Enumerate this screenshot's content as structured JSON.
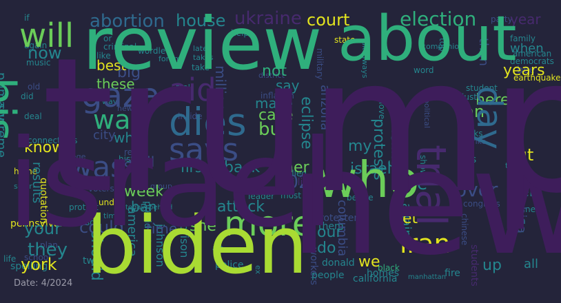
{
  "footer": {
    "date_label": "Date: 4/2024"
  },
  "palette": {
    "background": "#24243a",
    "purple_dark": "#3e1d5b",
    "purple": "#472a6e",
    "indigo": "#3b4d85",
    "blue": "#2f6a8e",
    "teal": "#24868e",
    "green": "#2faf7c",
    "green_light": "#6bcd59",
    "lime": "#a9db33",
    "yellow": "#e2e41f"
  },
  "words": [
    {
      "text": "trump",
      "color": "purple_dark"
    },
    {
      "text": "israel",
      "color": "purple_dark"
    },
    {
      "text": "new",
      "color": "purple_dark"
    },
    {
      "text": "biden",
      "color": "lime"
    },
    {
      "text": "review",
      "color": "green"
    },
    {
      "text": "about",
      "color": "green"
    },
    {
      "text": "who",
      "color": "green_light"
    },
    {
      "text": "will",
      "color": "green_light"
    },
    {
      "text": "his",
      "color": "green"
    },
    {
      "text": "more",
      "color": "green_light"
    },
    {
      "text": "gaza",
      "color": "indigo"
    },
    {
      "text": "dies",
      "color": "blue"
    },
    {
      "text": "says",
      "color": "indigo"
    },
    {
      "text": "war",
      "color": "green"
    },
    {
      "text": "aid",
      "color": "purple"
    },
    {
      "text": "was",
      "color": "indigo"
    },
    {
      "text": "trial",
      "color": "purple"
    },
    {
      "text": "day",
      "color": "blue"
    },
    {
      "text": "iran",
      "color": "yellow"
    },
    {
      "text": "abortion",
      "color": "blue"
    },
    {
      "text": "house",
      "color": "teal"
    },
    {
      "text": "ukraine",
      "color": "purple"
    },
    {
      "text": "court",
      "color": "yellow"
    },
    {
      "text": "election",
      "color": "green"
    },
    {
      "text": "year",
      "color": "purple"
    },
    {
      "text": "state",
      "color": "yellow"
    },
    {
      "text": "now",
      "color": "teal"
    },
    {
      "text": "best",
      "color": "yellow"
    },
    {
      "text": "big",
      "color": "indigo"
    },
    {
      "text": "these",
      "color": "green_light"
    },
    {
      "text": "not",
      "color": "green"
    },
    {
      "text": "say",
      "color": "teal"
    },
    {
      "text": "million",
      "color": "indigo"
    },
    {
      "text": "make",
      "color": "teal"
    },
    {
      "text": "case",
      "color": "green_light"
    },
    {
      "text": "but",
      "color": "green_light"
    },
    {
      "text": "can",
      "color": "green_light"
    },
    {
      "text": "here",
      "color": "green_light"
    },
    {
      "text": "when",
      "color": "teal"
    },
    {
      "text": "years",
      "color": "yellow"
    },
    {
      "text": "than",
      "color": "indigo"
    },
    {
      "text": "primary",
      "color": "teal"
    },
    {
      "text": "supreme",
      "color": "teal"
    },
    {
      "text": "know",
      "color": "yellow"
    },
    {
      "text": "why",
      "color": "teal"
    },
    {
      "text": "city",
      "color": "indigo"
    },
    {
      "text": "april",
      "color": "indigo"
    },
    {
      "text": "first",
      "color": "teal"
    },
    {
      "text": "back",
      "color": "teal"
    },
    {
      "text": "her",
      "color": "green_light"
    },
    {
      "text": "2024",
      "color": "indigo"
    },
    {
      "text": "he",
      "color": "teal"
    },
    {
      "text": "israeli",
      "color": "teal"
    },
    {
      "text": "protests",
      "color": "teal"
    },
    {
      "text": "eclipse",
      "color": "teal"
    },
    {
      "text": "arizona",
      "color": "indigo"
    },
    {
      "text": "one",
      "color": "teal"
    },
    {
      "text": "my",
      "color": "teal"
    },
    {
      "text": "briefing",
      "color": "teal"
    },
    {
      "text": "over",
      "color": "indigo"
    },
    {
      "text": "out",
      "color": "yellow"
    },
    {
      "text": "their",
      "color": "teal"
    },
    {
      "text": "results",
      "color": "teal"
    },
    {
      "text": "week",
      "color": "green_light"
    },
    {
      "text": "ban",
      "color": "teal"
    },
    {
      "text": "attack",
      "color": "teal"
    },
    {
      "text": "your",
      "color": "teal"
    },
    {
      "text": "could",
      "color": "indigo"
    },
    {
      "text": "time",
      "color": "indigo"
    },
    {
      "text": "she",
      "color": "green_light"
    },
    {
      "text": "they",
      "color": "teal"
    },
    {
      "text": "york",
      "color": "yellow"
    },
    {
      "text": "should",
      "color": "teal"
    },
    {
      "text": "america",
      "color": "teal"
    },
    {
      "text": "our",
      "color": "teal"
    },
    {
      "text": "do",
      "color": "teal"
    },
    {
      "text": "get",
      "color": "yellow"
    },
    {
      "text": "we",
      "color": "yellow"
    },
    {
      "text": "columbia",
      "color": "indigo"
    },
    {
      "text": "against",
      "color": "teal"
    },
    {
      "text": "up",
      "color": "teal"
    },
    {
      "text": "all",
      "color": "teal"
    },
    {
      "text": "china",
      "color": "indigo"
    },
    {
      "text": "prison",
      "color": "teal"
    },
    {
      "text": "police",
      "color": "teal"
    },
    {
      "text": "johnson",
      "color": "teal"
    },
    {
      "text": "president",
      "color": "teal"
    },
    {
      "text": "students",
      "color": "purple"
    },
    {
      "text": "two",
      "color": "teal"
    },
    {
      "text": "pennsylvania",
      "color": "yellow"
    },
    {
      "text": "quotation",
      "color": "yellow"
    },
    {
      "text": "spelling",
      "color": "teal"
    },
    {
      "text": "california",
      "color": "teal"
    },
    {
      "text": "manhattan",
      "color": "teal"
    },
    {
      "text": "donald",
      "color": "teal"
    },
    {
      "text": "people",
      "color": "teal"
    },
    {
      "text": "workers",
      "color": "indigo"
    },
    {
      "text": "homes",
      "color": "teal"
    },
    {
      "text": "black",
      "color": "green"
    },
    {
      "text": "protesters",
      "color": "indigo"
    },
    {
      "text": "them",
      "color": "teal"
    },
    {
      "text": "fire",
      "color": "teal"
    },
    {
      "text": "billion",
      "color": "purple"
    },
    {
      "text": "killed",
      "color": "teal"
    },
    {
      "text": "judge",
      "color": "indigo"
    },
    {
      "text": "made",
      "color": "teal"
    },
    {
      "text": "leader",
      "color": "teal"
    },
    {
      "text": "most",
      "color": "teal"
    },
    {
      "text": "before",
      "color": "teal"
    },
    {
      "text": "us",
      "color": "teal"
    },
    {
      "text": "tiktok",
      "color": "teal"
    },
    {
      "text": "books",
      "color": "teal"
    },
    {
      "text": "show",
      "color": "teal"
    },
    {
      "text": "congress",
      "color": "indigo"
    },
    {
      "text": "next",
      "color": "teal"
    },
    {
      "text": "don",
      "color": "teal"
    },
    {
      "text": "j",
      "color": "teal"
    },
    {
      "text": "bee",
      "color": "indigo"
    },
    {
      "text": "earthquake",
      "color": "yellow"
    },
    {
      "text": "student",
      "color": "teal"
    },
    {
      "text": "just",
      "color": "teal"
    },
    {
      "text": "word",
      "color": "teal"
    },
    {
      "text": "love",
      "color": "teal"
    },
    {
      "text": "political",
      "color": "indigo"
    },
    {
      "text": "military",
      "color": "indigo"
    },
    {
      "text": "takeaways",
      "color": "teal"
    },
    {
      "text": "companion",
      "color": "teal"
    },
    {
      "text": "top",
      "color": "teal"
    },
    {
      "text": "family",
      "color": "teal"
    },
    {
      "text": "american",
      "color": "teal"
    },
    {
      "text": "democrats",
      "color": "teal"
    },
    {
      "text": "party",
      "color": "indigo"
    },
    {
      "text": "if",
      "color": "teal"
    },
    {
      "text": "help",
      "color": "teal"
    },
    {
      "text": "or",
      "color": "teal"
    },
    {
      "text": "again",
      "color": "teal"
    },
    {
      "text": "criminal",
      "color": "teal"
    },
    {
      "text": "like",
      "color": "teal"
    },
    {
      "text": "music",
      "color": "teal"
    },
    {
      "text": "wordle",
      "color": "teal"
    },
    {
      "text": "forum",
      "color": "teal"
    },
    {
      "text": "late",
      "color": "teal"
    },
    {
      "text": "takes",
      "color": "teal"
    },
    {
      "text": "take",
      "color": "teal"
    },
    {
      "text": "real",
      "color": "teal"
    },
    {
      "text": "district",
      "color": "indigo"
    },
    {
      "text": "inflation",
      "color": "indigo"
    },
    {
      "text": "did",
      "color": "teal"
    },
    {
      "text": "deal",
      "color": "teal"
    },
    {
      "text": "way",
      "color": "teal"
    },
    {
      "text": "news",
      "color": "indigo"
    },
    {
      "text": "inside",
      "color": "indigo"
    },
    {
      "text": "connections",
      "color": "teal"
    },
    {
      "text": "history",
      "color": "teal"
    },
    {
      "text": "home",
      "color": "yellow"
    },
    {
      "text": "solar",
      "color": "teal"
    },
    {
      "text": "group",
      "color": "indigo"
    },
    {
      "text": "voters",
      "color": "indigo"
    },
    {
      "text": "today",
      "color": "teal"
    },
    {
      "text": "behind",
      "color": "teal"
    },
    {
      "text": "protest",
      "color": "teal"
    },
    {
      "text": "under",
      "color": "yellow"
    },
    {
      "text": "so",
      "color": "teal"
    },
    {
      "text": "times",
      "color": "teal"
    },
    {
      "text": "plan",
      "color": "indigo"
    },
    {
      "text": "school",
      "color": "indigo"
    },
    {
      "text": "life",
      "color": "teal"
    },
    {
      "text": "ex",
      "color": "teal"
    },
    {
      "text": "art",
      "color": "teal"
    },
    {
      "text": "tv",
      "color": "teal"
    },
    {
      "text": "chinese",
      "color": "indigo"
    },
    {
      "text": "strike",
      "color": "indigo"
    },
    {
      "text": "read",
      "color": "indigo"
    },
    {
      "text": "old",
      "color": "indigo"
    },
    {
      "text": "college",
      "color": "indigo"
    },
    {
      "text": "off",
      "color": "indigo"
    }
  ]
}
